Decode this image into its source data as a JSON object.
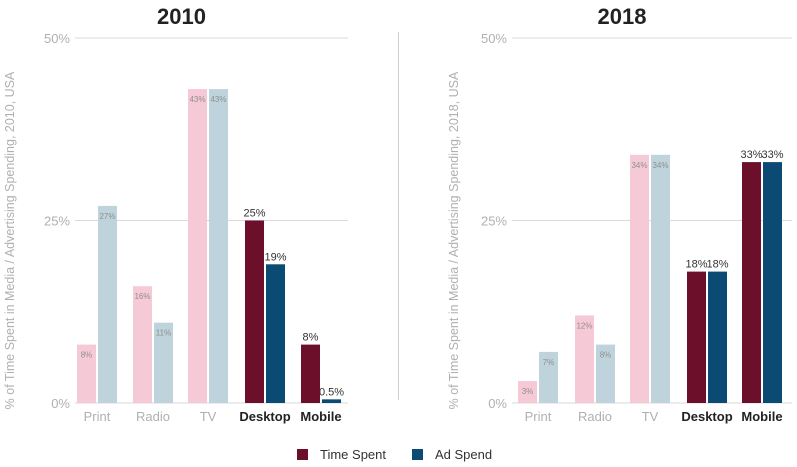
{
  "chart_data": [
    {
      "type": "bar",
      "title": "2010",
      "ylabel": "% of Time Spent in Media / Advertising Spending, 2010, USA",
      "ylim": [
        0,
        50
      ],
      "yticks": [
        "0%",
        "25%",
        "50%"
      ],
      "categories": [
        "Print",
        "Radio",
        "TV",
        "Desktop",
        "Mobile"
      ],
      "category_emphasis": [
        false,
        false,
        false,
        true,
        true
      ],
      "series": [
        {
          "name": "Time Spent",
          "values": [
            8,
            16,
            43,
            25,
            8
          ],
          "labels": [
            "8%",
            "16%",
            "43%",
            "25%",
            "8%"
          ]
        },
        {
          "name": "Ad Spend",
          "values": [
            27,
            11,
            43,
            19,
            0.5
          ],
          "labels": [
            "27%",
            "11%",
            "43%",
            "19%",
            "0.5%"
          ]
        }
      ]
    },
    {
      "type": "bar",
      "title": "2018",
      "ylabel": "% of Time Spent in Media / Advertising Spending, 2018, USA",
      "ylim": [
        0,
        50
      ],
      "yticks": [
        "0%",
        "25%",
        "50%"
      ],
      "categories": [
        "Print",
        "Radio",
        "TV",
        "Desktop",
        "Mobile"
      ],
      "category_emphasis": [
        false,
        false,
        false,
        true,
        true
      ],
      "series": [
        {
          "name": "Time Spent",
          "values": [
            3,
            12,
            34,
            18,
            33
          ],
          "labels": [
            "3%",
            "12%",
            "34%",
            "18%",
            "33%"
          ]
        },
        {
          "name": "Ad Spend",
          "values": [
            7,
            8,
            34,
            18,
            33
          ],
          "labels": [
            "7%",
            "8%",
            "34%",
            "18%",
            "33%"
          ]
        }
      ]
    }
  ],
  "legend": [
    {
      "label": "Time Spent",
      "color": "#6b0f2a"
    },
    {
      "label": "Ad Spend",
      "color": "#0b4a72"
    }
  ],
  "colors": {
    "time_spent_emph": "#6b0f2a",
    "ad_spend_emph": "#0b4a72",
    "time_spent_faded": "#f6c9d6",
    "ad_spend_faded": "#bed3dc",
    "grid": "#d9d9d9",
    "axis_text": "#b0b0b0",
    "title_text": "#222222"
  }
}
